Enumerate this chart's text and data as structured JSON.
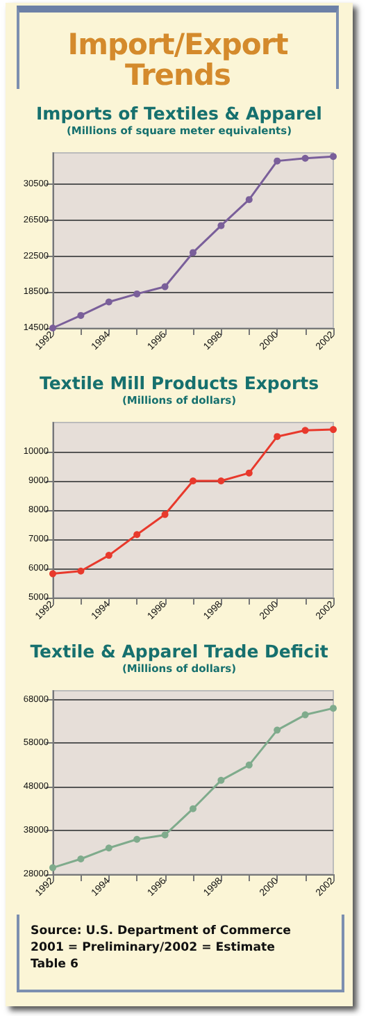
{
  "chart_data": [
    {
      "type": "other",
      "title": "Import/Export Trends"
    },
    {
      "type": "line",
      "title": "Imports of Textiles & Apparel",
      "subtitle": "(Millions of square meter equivalents)",
      "categories": [
        "1992",
        null,
        "1994",
        null,
        "1996",
        null,
        "1998",
        null,
        "2000",
        null,
        "2002"
      ],
      "series": [
        {
          "color": "#7a5f9a",
          "values": [
            14500,
            15900,
            17400,
            18300,
            19100,
            22900,
            25900,
            28800,
            33100,
            33400,
            33600
          ]
        }
      ],
      "ylim": [
        14500,
        34000
      ],
      "yticks": [
        14500,
        18500,
        22500,
        26500,
        30500
      ],
      "grid": "y",
      "marker": "circle"
    },
    {
      "type": "line",
      "title": "Textile Mill Products Exports",
      "subtitle": "(Millions of dollars)",
      "categories": [
        "1992",
        null,
        "1994",
        null,
        "1996",
        null,
        "1998",
        null,
        "2000",
        null,
        "2002"
      ],
      "series": [
        {
          "color": "#e8392c",
          "values": [
            5820,
            5910,
            6450,
            7160,
            7850,
            9000,
            9000,
            9270,
            10520,
            10730,
            10760
          ]
        }
      ],
      "ylim": [
        5000,
        11000
      ],
      "yticks": [
        5000,
        6000,
        7000,
        8000,
        9000,
        10000
      ],
      "grid": "y",
      "marker": "circle"
    },
    {
      "type": "line",
      "title": "Textile & Apparel Trade Deficit",
      "subtitle": "(Millions of dollars)",
      "categories": [
        "1992",
        null,
        "1994",
        null,
        "1996",
        null,
        "1998",
        null,
        "2000",
        null,
        "2002"
      ],
      "series": [
        {
          "color": "#7fab8c",
          "values": [
            29500,
            31500,
            34000,
            36000,
            37000,
            43000,
            49500,
            53000,
            61000,
            64500,
            66000
          ]
        }
      ],
      "ylim": [
        28000,
        70000
      ],
      "yticks": [
        28000,
        38000,
        48000,
        58000,
        68000
      ],
      "grid": "y",
      "marker": "circle"
    },
    {
      "type": "other",
      "annotations": [
        "Source: U.S. Department of Commerce",
        "2001 = Preliminary/2002 = Estimate",
        "Table 6"
      ]
    }
  ]
}
